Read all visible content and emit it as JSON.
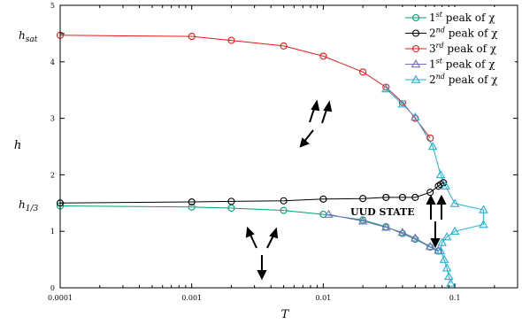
{
  "chart_data": {
    "type": "scatter",
    "xlabel": "T",
    "ylabel": "h",
    "x_scale": "log",
    "xlim": [
      0.0001,
      0.3
    ],
    "ylim": [
      0,
      5
    ],
    "x_ticks": [
      0.0001,
      0.001,
      0.01,
      0.1
    ],
    "x_tick_labels": [
      "0.0001",
      "0.001",
      "0.01",
      "0.1"
    ],
    "y_ticks": [
      0,
      1,
      2,
      3,
      4,
      5
    ],
    "y_tick_labels": [
      "0",
      "1",
      "2",
      "3",
      "4",
      "5"
    ],
    "special_y_ticks": [
      {
        "label": "h_sat",
        "y": 4.5
      },
      {
        "label": "h_1/3",
        "y": 1.5
      }
    ],
    "legend_position": "top-right",
    "series": [
      {
        "name": "1st peak of χ",
        "marker": "circle",
        "color": "#009e73",
        "x": [
          0.0001,
          0.001,
          0.002,
          0.005,
          0.01,
          0.02,
          0.03,
          0.04,
          0.05,
          0.065,
          0.075
        ],
        "y": [
          1.45,
          1.43,
          1.41,
          1.37,
          1.3,
          1.2,
          1.08,
          0.96,
          0.86,
          0.72,
          0.65
        ]
      },
      {
        "name": "2nd peak of χ",
        "marker": "circle",
        "color": "#000000",
        "x": [
          0.0001,
          0.001,
          0.002,
          0.005,
          0.01,
          0.02,
          0.03,
          0.04,
          0.05,
          0.065,
          0.075,
          0.078,
          0.082
        ],
        "y": [
          1.5,
          1.52,
          1.53,
          1.54,
          1.57,
          1.58,
          1.6,
          1.6,
          1.6,
          1.69,
          1.8,
          1.83,
          1.86
        ]
      },
      {
        "name": "3rd peak of χ",
        "marker": "circle",
        "color": "#e41a1c",
        "x": [
          0.0001,
          0.001,
          0.002,
          0.005,
          0.01,
          0.02,
          0.03,
          0.04,
          0.05,
          0.065
        ],
        "y": [
          4.47,
          4.45,
          4.38,
          4.28,
          4.1,
          3.82,
          3.55,
          3.28,
          3.0,
          2.65
        ]
      },
      {
        "name": "1st peak of χ",
        "marker": "triangle",
        "color": "#7b6cbf",
        "x": [
          0.011,
          0.02,
          0.03,
          0.04,
          0.05,
          0.065,
          0.075
        ],
        "y": [
          1.3,
          1.18,
          1.07,
          0.98,
          0.88,
          0.73,
          0.66
        ]
      },
      {
        "name": "2nd peak of χ",
        "marker": "triangle",
        "color": "#1fb3d6",
        "x": [
          0.03,
          0.04,
          0.05,
          0.068,
          0.078,
          0.085,
          0.1,
          0.165,
          0.165,
          0.1,
          0.087,
          0.08,
          0.078,
          0.083,
          0.087,
          0.09,
          0.093
        ],
        "y": [
          3.52,
          3.25,
          3.02,
          2.5,
          2.0,
          1.8,
          1.49,
          1.38,
          1.12,
          1.0,
          0.9,
          0.8,
          0.65,
          0.5,
          0.35,
          0.2,
          0.08
        ]
      }
    ],
    "annotations": [
      {
        "text": "UUD STATE"
      }
    ]
  }
}
